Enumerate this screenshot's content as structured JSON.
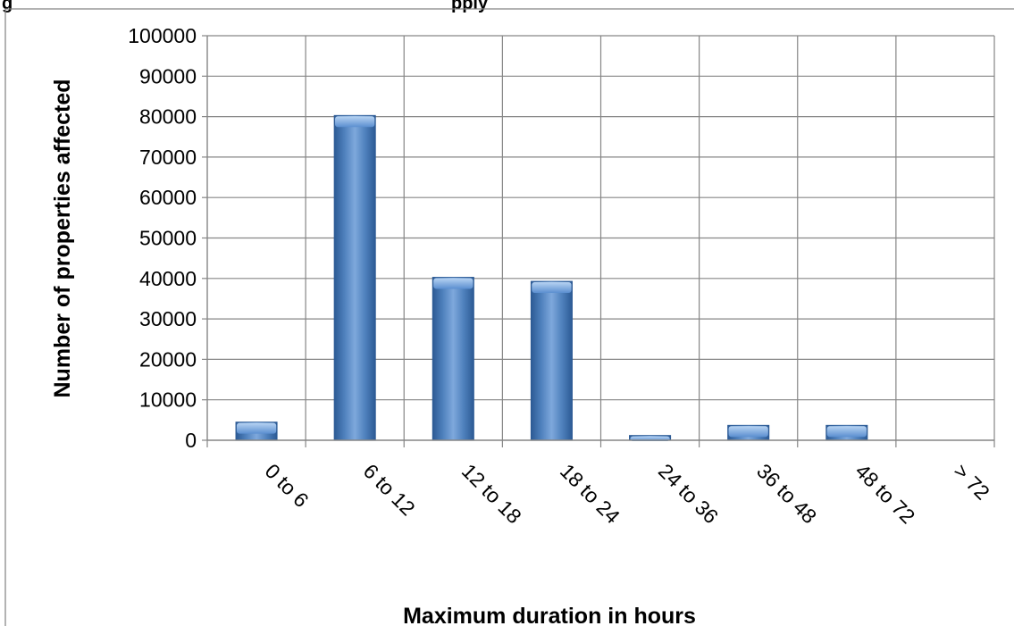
{
  "figure_caption_partial": "g",
  "figure_caption_partial_2": "pply",
  "chart_data": {
    "type": "bar",
    "categories": [
      "0 to 6",
      "6 to 12",
      "12 to 18",
      "18 to 24",
      "24 to 36",
      "36 to 48",
      "48 to 72",
      "> 72"
    ],
    "values": [
      4500,
      80300,
      40300,
      39300,
      1200,
      3700,
      3700,
      0
    ],
    "xlabel": "Maximum duration in hours",
    "ylabel": "Number of properties affected",
    "ylim": [
      0,
      100000
    ],
    "yticks": [
      0,
      10000,
      20000,
      30000,
      40000,
      50000,
      60000,
      70000,
      80000,
      90000,
      100000
    ],
    "ytick_labels": [
      "0",
      "10000",
      "20000",
      "30000",
      "40000",
      "50000",
      "60000",
      "70000",
      "80000",
      "90000",
      "100000"
    ],
    "grid": true,
    "bar_color": "#4f81bd",
    "bar_color_dark": "#2c5a94",
    "bar_color_light": "#9cc0ea"
  }
}
